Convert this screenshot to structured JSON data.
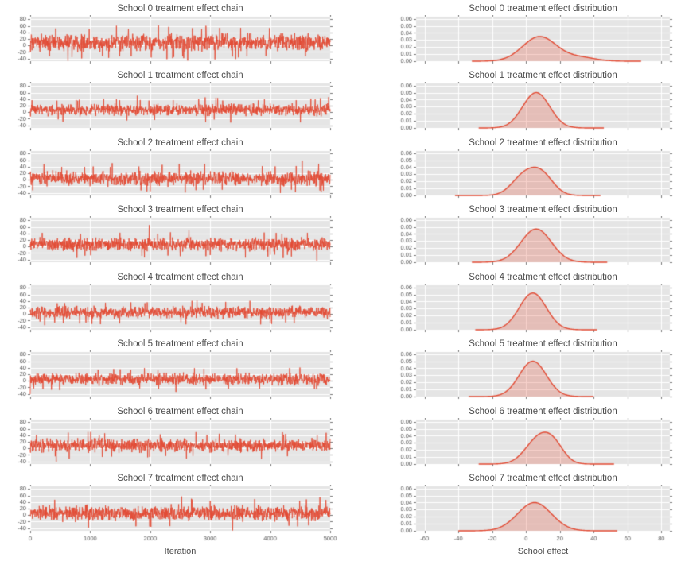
{
  "figure": {
    "background": "#ffffff",
    "axes_background": "#e5e5e5",
    "grid_color": "#ffffff",
    "trace_color": "#e24a33",
    "density_fill": "rgba(226,74,51,0.25)",
    "text_color": "#4d4d4d",
    "tick_color": "#555555",
    "xlabel_left": "Iteration",
    "xlabel_right": "School effect"
  },
  "chart_data": [
    {
      "school": 0,
      "trace": {
        "type": "line",
        "title": "School 0 treatment effect chain",
        "xlabel": "Iteration",
        "xlim": [
          0,
          5000
        ],
        "ylim": [
          -48,
          88
        ],
        "xticks": [
          0,
          1000,
          2000,
          3000,
          4000,
          5000
        ],
        "yticks": [
          -40,
          -20,
          0,
          20,
          40,
          60,
          80
        ],
        "ydp": 0,
        "n_samples": 5000,
        "mean": 9,
        "sd": 13
      },
      "density": {
        "type": "area",
        "title": "School 0 treatment effect distribution",
        "xlabel": "School effect",
        "xlim": [
          -65,
          85
        ],
        "ylim": [
          0,
          0.063
        ],
        "xticks": [
          -60,
          -40,
          -20,
          0,
          20,
          40,
          60,
          80
        ],
        "yticks": [
          0,
          0.01,
          0.02,
          0.03,
          0.04,
          0.05,
          0.06
        ],
        "ydp": 2,
        "peak_y": 0.035,
        "x_range": [
          -32,
          68
        ],
        "components": [
          {
            "mu": 8,
            "sigma": 10,
            "w": 0.88
          },
          {
            "mu": 32,
            "sigma": 9,
            "w": 0.12
          }
        ]
      }
    },
    {
      "school": 1,
      "trace": {
        "type": "line",
        "title": "School 1 treatment effect chain",
        "xlabel": "Iteration",
        "xlim": [
          0,
          5000
        ],
        "ylim": [
          -48,
          88
        ],
        "xticks": [
          0,
          1000,
          2000,
          3000,
          4000,
          5000
        ],
        "yticks": [
          -40,
          -20,
          0,
          20,
          40,
          60,
          80
        ],
        "ydp": 0,
        "n_samples": 5000,
        "mean": 7,
        "sd": 9
      },
      "density": {
        "type": "area",
        "title": "School 1 treatment effect distribution",
        "xlabel": "School effect",
        "xlim": [
          -65,
          85
        ],
        "ylim": [
          0,
          0.063
        ],
        "xticks": [
          -60,
          -40,
          -20,
          0,
          20,
          40,
          60,
          80
        ],
        "yticks": [
          0,
          0.01,
          0.02,
          0.03,
          0.04,
          0.05,
          0.06
        ],
        "ydp": 2,
        "peak_y": 0.05,
        "x_range": [
          -28,
          46
        ],
        "components": [
          {
            "mu": 6,
            "sigma": 8,
            "w": 1
          }
        ]
      }
    },
    {
      "school": 2,
      "trace": {
        "type": "line",
        "title": "School 2 treatment effect chain",
        "xlabel": "Iteration",
        "xlim": [
          0,
          5000
        ],
        "ylim": [
          -48,
          88
        ],
        "xticks": [
          0,
          1000,
          2000,
          3000,
          4000,
          5000
        ],
        "yticks": [
          -40,
          -20,
          0,
          20,
          40,
          60,
          80
        ],
        "ydp": 0,
        "n_samples": 5000,
        "mean": 4,
        "sd": 11
      },
      "density": {
        "type": "area",
        "title": "School 2 treatment effect distribution",
        "xlabel": "School effect",
        "xlim": [
          -65,
          85
        ],
        "ylim": [
          0,
          0.063
        ],
        "xticks": [
          -60,
          -40,
          -20,
          0,
          20,
          40,
          60,
          80
        ],
        "yticks": [
          0,
          0.01,
          0.02,
          0.03,
          0.04,
          0.05,
          0.06
        ],
        "ydp": 2,
        "peak_y": 0.04,
        "x_range": [
          -42,
          44
        ],
        "components": [
          {
            "mu": -2,
            "sigma": 7,
            "w": 0.45
          },
          {
            "mu": 9,
            "sigma": 7,
            "w": 0.55
          }
        ]
      }
    },
    {
      "school": 3,
      "trace": {
        "type": "line",
        "title": "School 3 treatment effect chain",
        "xlabel": "Iteration",
        "xlim": [
          0,
          5000
        ],
        "ylim": [
          -48,
          88
        ],
        "xticks": [
          0,
          1000,
          2000,
          3000,
          4000,
          5000
        ],
        "yticks": [
          -40,
          -20,
          0,
          20,
          40,
          60,
          80
        ],
        "ydp": 0,
        "n_samples": 5000,
        "mean": 7,
        "sd": 10
      },
      "density": {
        "type": "area",
        "title": "School 3 treatment effect distribution",
        "xlabel": "School effect",
        "xlim": [
          -65,
          85
        ],
        "ylim": [
          0,
          0.063
        ],
        "xticks": [
          -60,
          -40,
          -20,
          0,
          20,
          40,
          60,
          80
        ],
        "yticks": [
          0,
          0.01,
          0.02,
          0.03,
          0.04,
          0.05,
          0.06
        ],
        "ydp": 2,
        "peak_y": 0.047,
        "x_range": [
          -32,
          48
        ],
        "components": [
          {
            "mu": 6,
            "sigma": 9,
            "w": 1
          }
        ]
      }
    },
    {
      "school": 4,
      "trace": {
        "type": "line",
        "title": "School 4 treatment effect chain",
        "xlabel": "Iteration",
        "xlim": [
          0,
          5000
        ],
        "ylim": [
          -48,
          88
        ],
        "xticks": [
          0,
          1000,
          2000,
          3000,
          4000,
          5000
        ],
        "yticks": [
          -40,
          -20,
          0,
          20,
          40,
          60,
          80
        ],
        "ydp": 0,
        "n_samples": 5000,
        "mean": 5,
        "sd": 9
      },
      "density": {
        "type": "area",
        "title": "School 4 treatment effect distribution",
        "xlabel": "School effect",
        "xlim": [
          -65,
          85
        ],
        "ylim": [
          0,
          0.063
        ],
        "xticks": [
          -60,
          -40,
          -20,
          0,
          20,
          40,
          60,
          80
        ],
        "yticks": [
          0,
          0.01,
          0.02,
          0.03,
          0.04,
          0.05,
          0.06
        ],
        "ydp": 2,
        "peak_y": 0.052,
        "x_range": [
          -30,
          42
        ],
        "components": [
          {
            "mu": 4,
            "sigma": 8,
            "w": 1
          }
        ]
      }
    },
    {
      "school": 5,
      "trace": {
        "type": "line",
        "title": "School 5 treatment effect chain",
        "xlabel": "Iteration",
        "xlim": [
          0,
          5000
        ],
        "ylim": [
          -48,
          88
        ],
        "xticks": [
          0,
          1000,
          2000,
          3000,
          4000,
          5000
        ],
        "yticks": [
          -40,
          -20,
          0,
          20,
          40,
          60,
          80
        ],
        "ydp": 0,
        "n_samples": 5000,
        "mean": 5,
        "sd": 9
      },
      "density": {
        "type": "area",
        "title": "School 5 treatment effect distribution",
        "xlabel": "School effect",
        "xlim": [
          -65,
          85
        ],
        "ylim": [
          0,
          0.063
        ],
        "xticks": [
          -60,
          -40,
          -20,
          0,
          20,
          40,
          60,
          80
        ],
        "yticks": [
          0,
          0.01,
          0.02,
          0.03,
          0.04,
          0.05,
          0.06
        ],
        "ydp": 2,
        "peak_y": 0.05,
        "x_range": [
          -34,
          40
        ],
        "components": [
          {
            "mu": 4,
            "sigma": 8,
            "w": 1
          }
        ]
      }
    },
    {
      "school": 6,
      "trace": {
        "type": "line",
        "title": "School 6 treatment effect chain",
        "xlabel": "Iteration",
        "xlim": [
          0,
          5000
        ],
        "ylim": [
          -48,
          88
        ],
        "xticks": [
          0,
          1000,
          2000,
          3000,
          4000,
          5000
        ],
        "yticks": [
          -40,
          -20,
          0,
          20,
          40,
          60,
          80
        ],
        "ydp": 0,
        "n_samples": 5000,
        "mean": 9,
        "sd": 10
      },
      "density": {
        "type": "area",
        "title": "School 6 treatment effect distribution",
        "xlabel": "School effect",
        "xlim": [
          -65,
          85
        ],
        "ylim": [
          0,
          0.063
        ],
        "xticks": [
          -60,
          -40,
          -20,
          0,
          20,
          40,
          60,
          80
        ],
        "yticks": [
          0,
          0.01,
          0.02,
          0.03,
          0.04,
          0.05,
          0.06
        ],
        "ydp": 2,
        "peak_y": 0.045,
        "x_range": [
          -28,
          52
        ],
        "components": [
          {
            "mu": 8,
            "sigma": 8,
            "w": 0.75
          },
          {
            "mu": 17,
            "sigma": 6,
            "w": 0.25
          }
        ]
      }
    },
    {
      "school": 7,
      "trace": {
        "type": "line",
        "title": "School 7 treatment effect chain",
        "xlabel": "Iteration",
        "xlim": [
          0,
          5000
        ],
        "ylim": [
          -48,
          88
        ],
        "xticks": [
          0,
          1000,
          2000,
          3000,
          4000,
          5000
        ],
        "yticks": [
          -40,
          -20,
          0,
          20,
          40,
          60,
          80
        ],
        "ydp": 0,
        "n_samples": 5000,
        "mean": 6,
        "sd": 12
      },
      "density": {
        "type": "area",
        "title": "School 7 treatment effect distribution",
        "xlabel": "School effect",
        "xlim": [
          -65,
          85
        ],
        "ylim": [
          0,
          0.063
        ],
        "xticks": [
          -60,
          -40,
          -20,
          0,
          20,
          40,
          60,
          80
        ],
        "yticks": [
          0,
          0.01,
          0.02,
          0.03,
          0.04,
          0.05,
          0.06
        ],
        "ydp": 2,
        "peak_y": 0.04,
        "x_range": [
          -40,
          54
        ],
        "components": [
          {
            "mu": 5,
            "sigma": 10,
            "w": 1
          }
        ]
      }
    }
  ]
}
